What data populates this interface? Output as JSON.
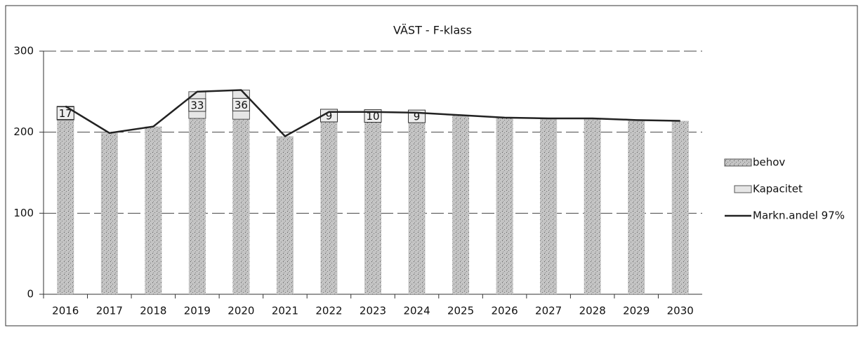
{
  "chart_data": {
    "type": "bar",
    "title": "VÄST - F-klass",
    "categories": [
      "2016",
      "2017",
      "2018",
      "2019",
      "2020",
      "2021",
      "2022",
      "2023",
      "2024",
      "2025",
      "2026",
      "2027",
      "2028",
      "2029",
      "2030"
    ],
    "series": [
      {
        "name": "behov",
        "color": "#a8a8a8",
        "values": [
          215,
          199,
          207,
          217,
          216,
          195,
          216,
          215,
          215,
          221,
          218,
          217,
          217,
          215,
          214
        ]
      },
      {
        "name": "Kapacitet",
        "color": "#e6e6e6",
        "values": [
          17,
          null,
          null,
          33,
          36,
          null,
          9,
          10,
          9,
          null,
          null,
          null,
          null,
          null,
          null
        ]
      },
      {
        "name": "Markn.andel 97%",
        "type": "line",
        "color": "#222222",
        "values": [
          232,
          199,
          207,
          250,
          252,
          195,
          225,
          225,
          224,
          221,
          218,
          217,
          217,
          215,
          214
        ]
      }
    ],
    "ylim": [
      0,
      300
    ],
    "yticks": [
      0,
      100,
      200,
      300
    ],
    "grid": true,
    "legend": "right"
  }
}
